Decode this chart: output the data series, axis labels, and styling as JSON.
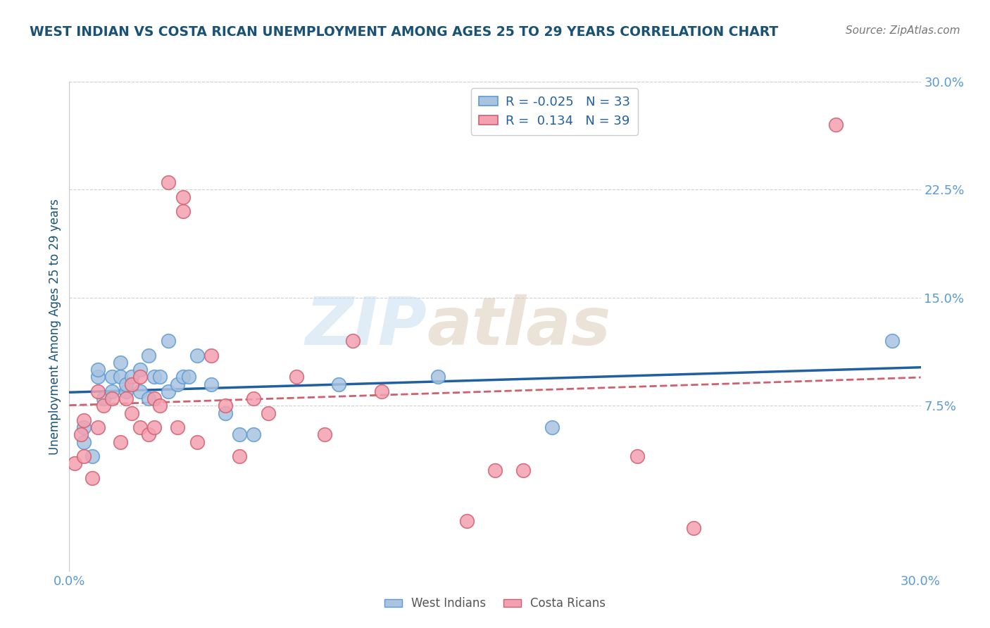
{
  "title": "WEST INDIAN VS COSTA RICAN UNEMPLOYMENT AMONG AGES 25 TO 29 YEARS CORRELATION CHART",
  "source": "Source: ZipAtlas.com",
  "ylabel": "Unemployment Among Ages 25 to 29 years",
  "xlim": [
    0.0,
    0.3
  ],
  "ylim": [
    -0.04,
    0.3
  ],
  "ytick_right_labels": [
    "7.5%",
    "15.0%",
    "22.5%",
    "30.0%"
  ],
  "ytick_right_values": [
    0.075,
    0.15,
    0.225,
    0.3
  ],
  "watermark_zip": "ZIP",
  "watermark_atlas": "atlas",
  "series": [
    {
      "name": "West Indians",
      "color": "#aac4e0",
      "edge_color": "#5b9bd5",
      "R": -0.025,
      "N": 33,
      "x": [
        0.005,
        0.005,
        0.008,
        0.01,
        0.01,
        0.012,
        0.015,
        0.015,
        0.018,
        0.018,
        0.02,
        0.02,
        0.022,
        0.025,
        0.025,
        0.028,
        0.028,
        0.03,
        0.032,
        0.035,
        0.035,
        0.038,
        0.04,
        0.042,
        0.045,
        0.05,
        0.055,
        0.06,
        0.065,
        0.095,
        0.13,
        0.17,
        0.29
      ],
      "y": [
        0.05,
        0.06,
        0.04,
        0.095,
        0.1,
        0.08,
        0.085,
        0.095,
        0.095,
        0.105,
        0.085,
        0.09,
        0.095,
        0.085,
        0.1,
        0.11,
        0.08,
        0.095,
        0.095,
        0.12,
        0.085,
        0.09,
        0.095,
        0.095,
        0.11,
        0.09,
        0.07,
        0.055,
        0.055,
        0.09,
        0.095,
        0.06,
        0.12
      ],
      "trend_color": "#2060a0",
      "trend_style": "solid"
    },
    {
      "name": "Costa Ricans",
      "color": "#f4a0b0",
      "edge_color": "#d06070",
      "R": 0.134,
      "N": 39,
      "x": [
        0.002,
        0.004,
        0.005,
        0.005,
        0.008,
        0.01,
        0.01,
        0.012,
        0.015,
        0.018,
        0.02,
        0.022,
        0.022,
        0.025,
        0.025,
        0.028,
        0.03,
        0.03,
        0.032,
        0.035,
        0.038,
        0.04,
        0.04,
        0.045,
        0.05,
        0.055,
        0.06,
        0.065,
        0.07,
        0.08,
        0.09,
        0.1,
        0.11,
        0.14,
        0.15,
        0.16,
        0.2,
        0.22,
        0.27
      ],
      "y": [
        0.035,
        0.055,
        0.04,
        0.065,
        0.025,
        0.06,
        0.085,
        0.075,
        0.08,
        0.05,
        0.08,
        0.07,
        0.09,
        0.06,
        0.095,
        0.055,
        0.08,
        0.06,
        0.075,
        0.23,
        0.06,
        0.21,
        0.22,
        0.05,
        0.11,
        0.075,
        0.04,
        0.08,
        0.07,
        0.095,
        0.055,
        0.12,
        0.085,
        -0.005,
        0.03,
        0.03,
        0.04,
        -0.01,
        0.27
      ],
      "trend_color": "#d06070",
      "trend_style": "dashed"
    }
  ],
  "legend_box_colors": [
    "#aac4e0",
    "#f4a0b0"
  ],
  "legend_edge_colors": [
    "#5b9bd5",
    "#d06070"
  ],
  "title_color": "#1a5276",
  "axis_tick_color": "#5b9bd5",
  "label_color": "#1a5276",
  "background_color": "#ffffff",
  "grid_color": "#d0d0d0",
  "border_color": "#cccccc"
}
